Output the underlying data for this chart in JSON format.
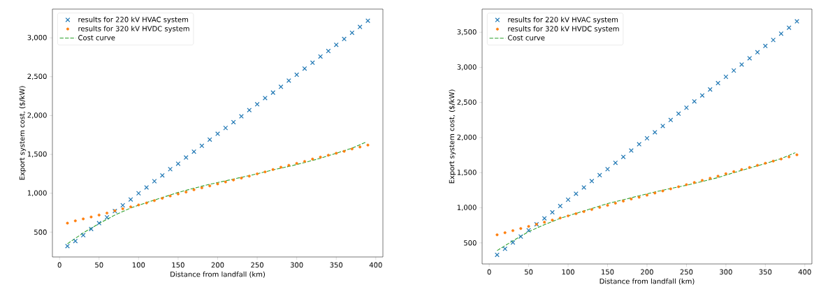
{
  "chart_data": [
    {
      "type": "scatter",
      "xlabel": "Distance from landfall (km)",
      "ylabel": "Export system cost, ($/kW)",
      "xlim": [
        -9,
        409
      ],
      "ylim": [
        180,
        3370
      ],
      "xticks": [
        0,
        50,
        100,
        150,
        200,
        250,
        300,
        350,
        400
      ],
      "yticks": [
        {
          "value": 500,
          "label": "500"
        },
        {
          "value": 1000,
          "label": "1,000"
        },
        {
          "value": 1500,
          "label": "1,500"
        },
        {
          "value": 2000,
          "label": "2,000"
        },
        {
          "value": 2500,
          "label": "2,500"
        },
        {
          "value": 3000,
          "label": "3,000"
        }
      ],
      "legend": "top left",
      "x": [
        10,
        20,
        30,
        40,
        50,
        60,
        70,
        80,
        90,
        100,
        110,
        120,
        130,
        140,
        150,
        160,
        170,
        180,
        190,
        200,
        210,
        220,
        230,
        240,
        250,
        260,
        270,
        280,
        290,
        300,
        310,
        320,
        330,
        340,
        350,
        360,
        370,
        380,
        390
      ],
      "series": [
        {
          "name": "results for 220 kV HVAC system",
          "marker": "cross",
          "color": "#1f77b4",
          "values": [
            320,
            385,
            460,
            540,
            615,
            690,
            770,
            845,
            920,
            1000,
            1075,
            1155,
            1230,
            1310,
            1380,
            1460,
            1535,
            1610,
            1690,
            1765,
            1840,
            1915,
            1990,
            2070,
            2145,
            2225,
            2295,
            2370,
            2450,
            2525,
            2605,
            2680,
            2760,
            2830,
            2910,
            2985,
            3065,
            3140,
            3220
          ]
        },
        {
          "name": "results for 320 kV HVDC system",
          "marker": "circle",
          "color": "#ff7f0e",
          "values": [
            615,
            645,
            670,
            695,
            720,
            745,
            775,
            800,
            825,
            850,
            875,
            905,
            935,
            965,
            990,
            1015,
            1045,
            1070,
            1095,
            1120,
            1145,
            1170,
            1195,
            1220,
            1250,
            1275,
            1305,
            1335,
            1360,
            1385,
            1410,
            1440,
            1465,
            1490,
            1515,
            1540,
            1570,
            1595,
            1620
          ]
        },
        {
          "name": "Cost curve",
          "type": "line",
          "marker": "none",
          "line_style": "dashed",
          "color": "#2ca02c",
          "x": [
            10,
            30,
            50,
            70,
            90,
            110,
            130,
            150,
            170,
            190,
            210,
            230,
            250,
            270,
            290,
            310,
            330,
            350,
            370,
            388
          ],
          "values": [
            350,
            490,
            610,
            720,
            810,
            880,
            945,
            1010,
            1065,
            1115,
            1160,
            1205,
            1250,
            1300,
            1345,
            1395,
            1450,
            1515,
            1580,
            1660
          ]
        }
      ]
    },
    {
      "type": "scatter",
      "xlabel": "Distance from landfall (km)",
      "ylabel": "Export system cost, ($/kW)",
      "xlim": [
        -9,
        409
      ],
      "ylim": [
        200,
        3830
      ],
      "xticks": [
        0,
        50,
        100,
        150,
        200,
        250,
        300,
        350,
        400
      ],
      "yticks": [
        {
          "value": 500,
          "label": "500"
        },
        {
          "value": 1000,
          "label": "1,000"
        },
        {
          "value": 1500,
          "label": "1,500"
        },
        {
          "value": 2000,
          "label": "2,000"
        },
        {
          "value": 2500,
          "label": "2,500"
        },
        {
          "value": 3000,
          "label": "3,000"
        },
        {
          "value": 3500,
          "label": "3,500"
        }
      ],
      "legend": "top left",
      "x": [
        10,
        20,
        30,
        40,
        50,
        60,
        70,
        80,
        90,
        100,
        110,
        120,
        130,
        140,
        150,
        160,
        170,
        180,
        190,
        200,
        210,
        220,
        230,
        240,
        250,
        260,
        270,
        280,
        290,
        300,
        310,
        320,
        330,
        340,
        350,
        360,
        370,
        380,
        390
      ],
      "series": [
        {
          "name": "results for 220 kV HVAC system",
          "marker": "cross",
          "color": "#1f77b4",
          "values": [
            330,
            415,
            505,
            590,
            680,
            765,
            850,
            935,
            1025,
            1115,
            1200,
            1290,
            1380,
            1465,
            1550,
            1640,
            1725,
            1815,
            1905,
            1990,
            2075,
            2165,
            2250,
            2340,
            2425,
            2515,
            2600,
            2685,
            2775,
            2865,
            2955,
            3040,
            3130,
            3215,
            3305,
            3390,
            3480,
            3565,
            3655
          ]
        },
        {
          "name": "results for 320 kV HVDC system",
          "marker": "circle",
          "color": "#ff7f0e",
          "values": [
            615,
            645,
            675,
            705,
            735,
            765,
            795,
            825,
            855,
            885,
            915,
            945,
            975,
            1005,
            1035,
            1065,
            1095,
            1125,
            1150,
            1180,
            1210,
            1240,
            1270,
            1300,
            1330,
            1360,
            1390,
            1420,
            1450,
            1485,
            1515,
            1545,
            1575,
            1605,
            1635,
            1665,
            1695,
            1725,
            1755
          ]
        },
        {
          "name": "Cost curve",
          "type": "line",
          "marker": "none",
          "line_style": "dashed",
          "color": "#2ca02c",
          "x": [
            10,
            30,
            50,
            70,
            90,
            110,
            130,
            150,
            170,
            190,
            210,
            230,
            250,
            270,
            290,
            310,
            330,
            350,
            370,
            388
          ],
          "values": [
            390,
            530,
            660,
            760,
            850,
            920,
            990,
            1060,
            1115,
            1170,
            1225,
            1275,
            1320,
            1375,
            1430,
            1500,
            1565,
            1630,
            1700,
            1785
          ]
        }
      ]
    }
  ]
}
